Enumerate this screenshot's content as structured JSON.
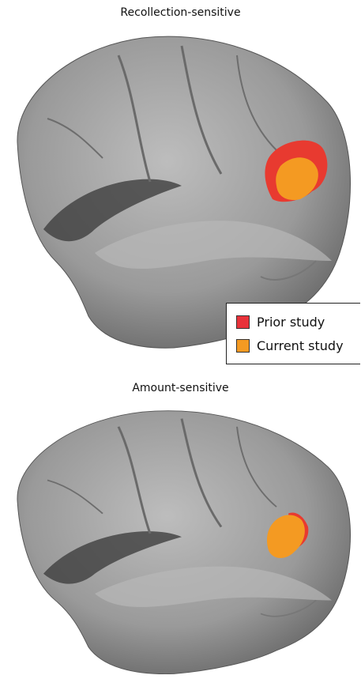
{
  "panels": [
    {
      "title": "Recollection-sensitive"
    },
    {
      "title": "Amount-sensitive"
    }
  ],
  "legend": [
    "Prior study",
    "Current study"
  ]
}
